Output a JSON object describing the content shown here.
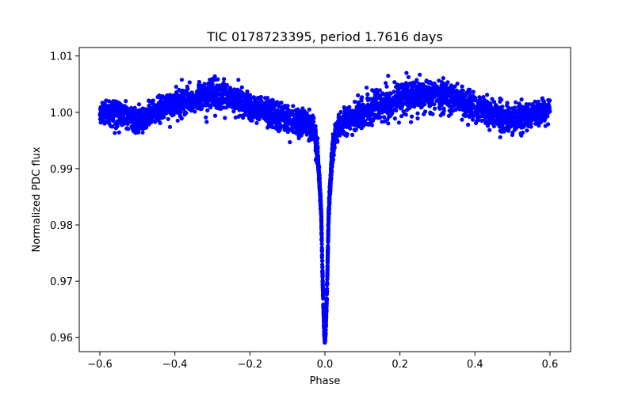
{
  "chart_data": {
    "type": "scatter",
    "title": "TIC 0178723395, period 1.7616 days",
    "xlabel": "Phase",
    "ylabel": "Normalized PDC flux",
    "xlim": [
      -0.655,
      0.655
    ],
    "ylim": [
      0.9575,
      1.0115
    ],
    "xticks": [
      -0.6,
      -0.4,
      -0.2,
      0.0,
      0.2,
      0.4,
      0.6
    ],
    "xtick_labels": [
      "−0.6",
      "−0.4",
      "−0.2",
      "0.0",
      "0.2",
      "0.4",
      "0.6"
    ],
    "yticks": [
      0.96,
      0.97,
      0.98,
      0.99,
      1.0,
      1.01
    ],
    "ytick_labels": [
      "0.96",
      "0.97",
      "0.98",
      "0.99",
      "1.00",
      "1.01"
    ],
    "grid": false,
    "marker_color": "#0000ff",
    "series": [
      {
        "x": [
          -0.6,
          -0.58,
          -0.56,
          -0.54,
          -0.52,
          -0.5,
          -0.48,
          -0.46,
          -0.44,
          -0.42,
          -0.4,
          -0.38,
          -0.36,
          -0.34,
          -0.32,
          -0.3,
          -0.28,
          -0.26,
          -0.24,
          -0.22,
          -0.2,
          -0.18,
          -0.16,
          -0.14,
          -0.12,
          -0.1,
          -0.08,
          -0.06,
          -0.04,
          -0.03,
          -0.02,
          -0.015,
          -0.01,
          -0.008,
          -0.006,
          -0.004,
          -0.002,
          0.0,
          0.002,
          0.004,
          0.006,
          0.008,
          0.01,
          0.015,
          0.02,
          0.03,
          0.04,
          0.06,
          0.08,
          0.1,
          0.12,
          0.14,
          0.16,
          0.18,
          0.2,
          0.22,
          0.24,
          0.26,
          0.28,
          0.3,
          0.32,
          0.34,
          0.36,
          0.38,
          0.4,
          0.42,
          0.44,
          0.46,
          0.48,
          0.5,
          0.52,
          0.54,
          0.56,
          0.58,
          0.6
        ],
        "y": [
          1.0,
          1.0,
          1.0,
          0.9995,
          0.999,
          0.9985,
          0.999,
          1.0,
          1.0005,
          1.001,
          1.0015,
          1.002,
          1.002,
          1.0025,
          1.0028,
          1.003,
          1.0028,
          1.0025,
          1.002,
          1.0015,
          1.001,
          1.0005,
          1.0,
          0.9995,
          0.999,
          0.9985,
          0.998,
          0.9985,
          0.9975,
          0.997,
          0.993,
          0.988,
          0.982,
          0.976,
          0.97,
          0.965,
          0.961,
          0.9595,
          0.961,
          0.965,
          0.97,
          0.976,
          0.982,
          0.988,
          0.993,
          0.997,
          0.9975,
          0.9985,
          0.999,
          0.9995,
          1.0005,
          1.001,
          1.0015,
          1.002,
          1.0025,
          1.003,
          1.003,
          1.003,
          1.003,
          1.003,
          1.0028,
          1.0025,
          1.002,
          1.0015,
          1.001,
          1.0005,
          1.0,
          0.9995,
          0.999,
          0.9985,
          0.999,
          0.9995,
          1.0,
          1.0,
          1.0
        ],
        "scatter": [
          0.0018,
          0.002,
          0.002,
          0.0022,
          0.0022,
          0.0022,
          0.0022,
          0.0022,
          0.0022,
          0.0022,
          0.0022,
          0.0022,
          0.0022,
          0.0022,
          0.0024,
          0.0026,
          0.0026,
          0.0024,
          0.0022,
          0.0022,
          0.0022,
          0.0022,
          0.0022,
          0.0022,
          0.0022,
          0.0022,
          0.0022,
          0.0022,
          0.002,
          0.0018,
          0.0016,
          0.0012,
          0.001,
          0.0008,
          0.0008,
          0.0007,
          0.0006,
          0.0005,
          0.0006,
          0.0007,
          0.0008,
          0.0008,
          0.001,
          0.0012,
          0.0016,
          0.0018,
          0.002,
          0.0022,
          0.0022,
          0.0022,
          0.0022,
          0.0022,
          0.0022,
          0.0024,
          0.0026,
          0.0026,
          0.0026,
          0.0026,
          0.0026,
          0.0026,
          0.0026,
          0.0024,
          0.0022,
          0.0022,
          0.0022,
          0.0022,
          0.0022,
          0.0022,
          0.0022,
          0.0022,
          0.0022,
          0.0022,
          0.002,
          0.002,
          0.0018
        ]
      }
    ]
  }
}
